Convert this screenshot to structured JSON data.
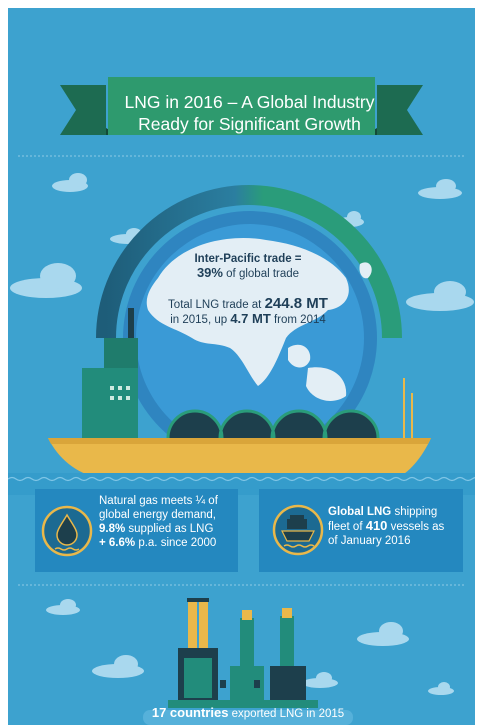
{
  "title": {
    "line1": "LNG in 2016 – A Global Industry",
    "line2": "Ready for Significant Growth"
  },
  "globe": {
    "heading": "Inter-Pacific trade =",
    "pct_value": "39%",
    "pct_suffix": " of global trade",
    "trade_line1_prefix": "Total LNG trade at ",
    "trade_value": "244.8 MT",
    "trade_line2_prefix": "in 2015, up ",
    "trade_increase": "4.7 MT",
    "trade_line2_suffix": " from 2014"
  },
  "card_gas": {
    "icon": "water-drop-icon",
    "line1": "Natural gas meets ¼ of",
    "line2": "global energy demand,",
    "pct1": "9.8%",
    "line3_suffix": " supplied as LNG",
    "pct2": "+ 6.6%",
    "line4_suffix": " p.a. since 2000"
  },
  "card_ship": {
    "icon": "cargo-ship-icon",
    "bold1": "Global LNG",
    "line1_suffix": " shipping",
    "line2_prefix": "fleet of ",
    "vessels": "410",
    "line2_suffix": " vessels as",
    "line3": "of January 2016"
  },
  "footer": {
    "bold": "17 countries",
    "rest": " exported LNG in 2015"
  },
  "colors": {
    "sky": "#3da2cf",
    "banner_green": "#2e9a6e",
    "banner_dark": "#1d6b51",
    "ship_hull": "#e9b84a",
    "ship_teal": "#228c7b",
    "tank_dark": "#1d3f4c",
    "card_blue": "#2488bf",
    "text_dark": "#1f3f58"
  }
}
